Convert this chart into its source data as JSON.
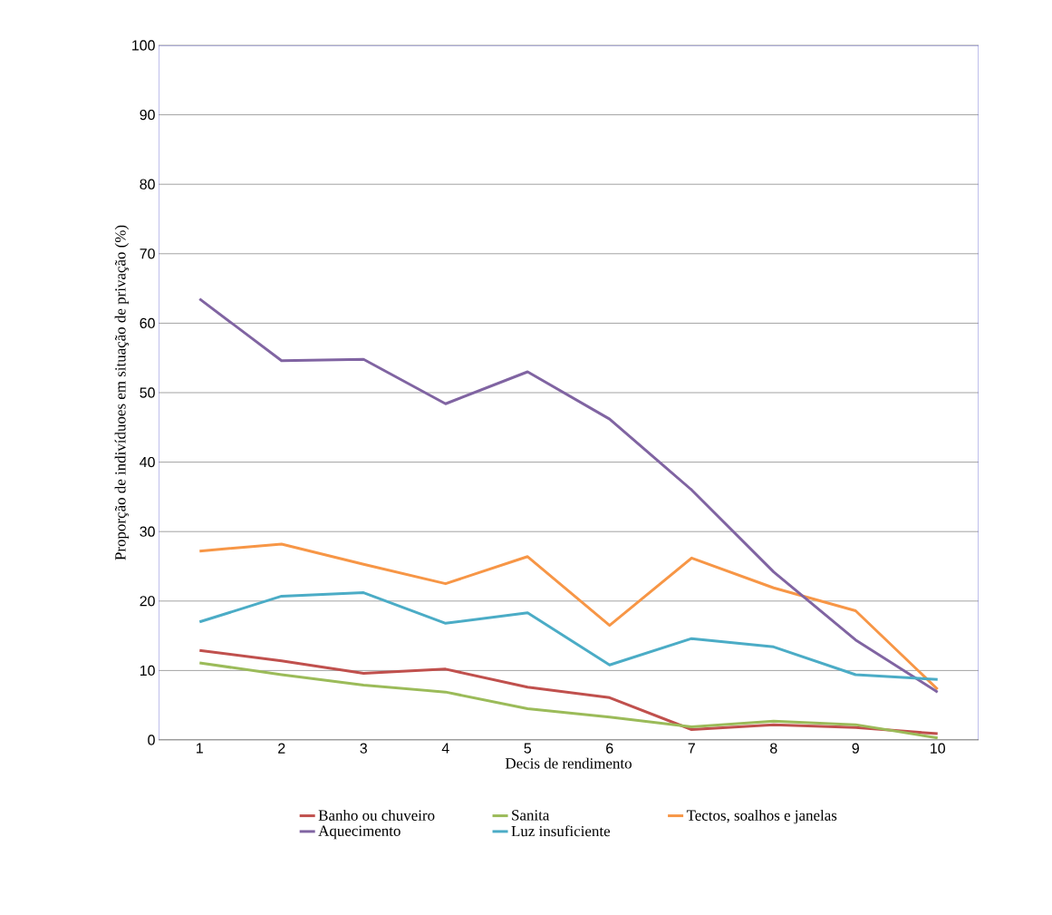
{
  "chart_data": {
    "type": "line",
    "xlabel": "Decis de rendimento",
    "ylabel": "Proporção de indivíduoes em situação de privação (%)",
    "categories": [
      "1",
      "2",
      "3",
      "4",
      "5",
      "6",
      "7",
      "8",
      "9",
      "10"
    ],
    "series": [
      {
        "name": "Banho ou chuveiro",
        "color": "#c0504d",
        "values": [
          12.9,
          11.4,
          9.6,
          10.2,
          7.6,
          6.1,
          1.5,
          2.2,
          1.8,
          0.9
        ]
      },
      {
        "name": "Sanita",
        "color": "#9bbb59",
        "values": [
          11.1,
          9.4,
          7.9,
          6.9,
          4.5,
          3.3,
          1.9,
          2.7,
          2.2,
          0.3
        ]
      },
      {
        "name": "Tectos, soalhos e janelas",
        "color": "#f79646",
        "values": [
          27.2,
          28.2,
          25.3,
          22.5,
          26.4,
          16.5,
          26.2,
          21.9,
          18.6,
          7.3
        ]
      },
      {
        "name": "Aquecimento",
        "color": "#8064a2",
        "values": [
          63.5,
          54.6,
          54.8,
          48.4,
          53.0,
          46.2,
          36.0,
          24.2,
          14.4,
          6.9
        ]
      },
      {
        "name": "Luz insuficiente",
        "color": "#4bacc6",
        "values": [
          17.0,
          20.7,
          21.2,
          16.8,
          18.3,
          10.8,
          14.6,
          13.4,
          9.4,
          8.7
        ]
      }
    ],
    "ylim": [
      0,
      100
    ],
    "yticks": [
      0,
      10,
      20,
      30,
      40,
      50,
      60,
      70,
      80,
      90,
      100
    ],
    "grid": "y",
    "legend": "bottom",
    "line_style": "solid"
  }
}
